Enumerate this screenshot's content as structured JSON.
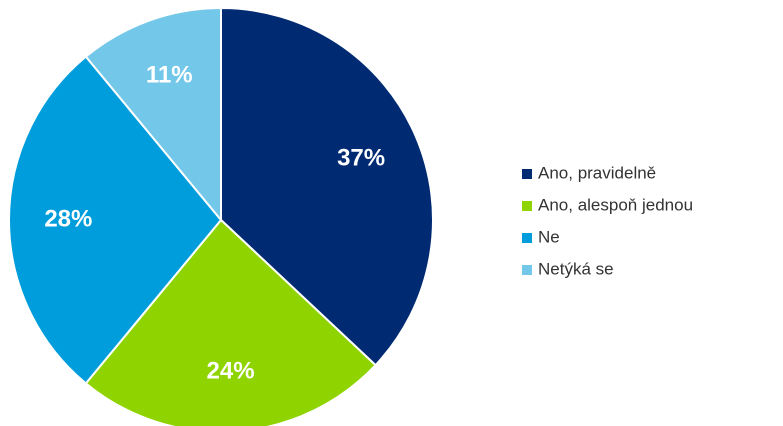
{
  "chart_data": {
    "type": "pie",
    "categories": [
      "Ano, pravidelně",
      "Ano, alespoň jednou",
      "Ne",
      "Netýká se"
    ],
    "values": [
      37,
      24,
      28,
      11
    ],
    "value_labels": [
      "37%",
      "24%",
      "28%",
      "11%"
    ],
    "colors": [
      "#002b73",
      "#8fd400",
      "#009ddc",
      "#73c7e9"
    ],
    "legend": "right"
  }
}
